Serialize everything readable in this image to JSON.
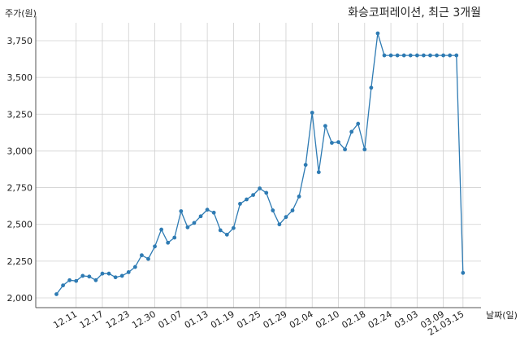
{
  "chart_data": {
    "type": "line",
    "title": "화승코퍼레이션, 최근 3개월",
    "ylabel": "주가(원)",
    "xlabel": "날짜(일)",
    "ylim": [
      2000,
      3800
    ],
    "grid": true,
    "line_color": "#2e7bb3",
    "y_ticks": [
      2000,
      2250,
      2500,
      2750,
      3000,
      3250,
      3500,
      3750
    ],
    "y_tick_labels": [
      "2,000",
      "2,250",
      "2,500",
      "2,750",
      "3,000",
      "3,250",
      "3,500",
      "3,750"
    ],
    "x_ticks": [
      {
        "index": 3,
        "label": "12.11"
      },
      {
        "index": 7,
        "label": "12.17"
      },
      {
        "index": 11,
        "label": "12.23"
      },
      {
        "index": 15,
        "label": "12.30"
      },
      {
        "index": 19,
        "label": "01.07"
      },
      {
        "index": 23,
        "label": "01.13"
      },
      {
        "index": 27,
        "label": "01.19"
      },
      {
        "index": 31,
        "label": "01.25"
      },
      {
        "index": 35,
        "label": "01.29"
      },
      {
        "index": 39,
        "label": "02.04"
      },
      {
        "index": 43,
        "label": "02.10"
      },
      {
        "index": 47,
        "label": "02.18"
      },
      {
        "index": 51,
        "label": "02.24"
      },
      {
        "index": 55,
        "label": "03.03"
      },
      {
        "index": 59,
        "label": "03.09"
      },
      {
        "index": 62,
        "label": "21.03.15"
      }
    ],
    "values": [
      2025,
      2085,
      2120,
      2115,
      2150,
      2145,
      2120,
      2165,
      2165,
      2140,
      2150,
      2175,
      2210,
      2290,
      2265,
      2350,
      2465,
      2375,
      2410,
      2590,
      2480,
      2510,
      2555,
      2600,
      2580,
      2460,
      2430,
      2475,
      2640,
      2670,
      2700,
      2745,
      2715,
      2595,
      2500,
      2550,
      2595,
      2690,
      2905,
      3260,
      2855,
      3170,
      3055,
      3060,
      3010,
      3130,
      3185,
      3010,
      3430,
      3800,
      3650,
      3650,
      3650,
      3650,
      3650,
      3650,
      3650,
      3650,
      3650,
      3650,
      3650,
      3650,
      2170
    ]
  }
}
